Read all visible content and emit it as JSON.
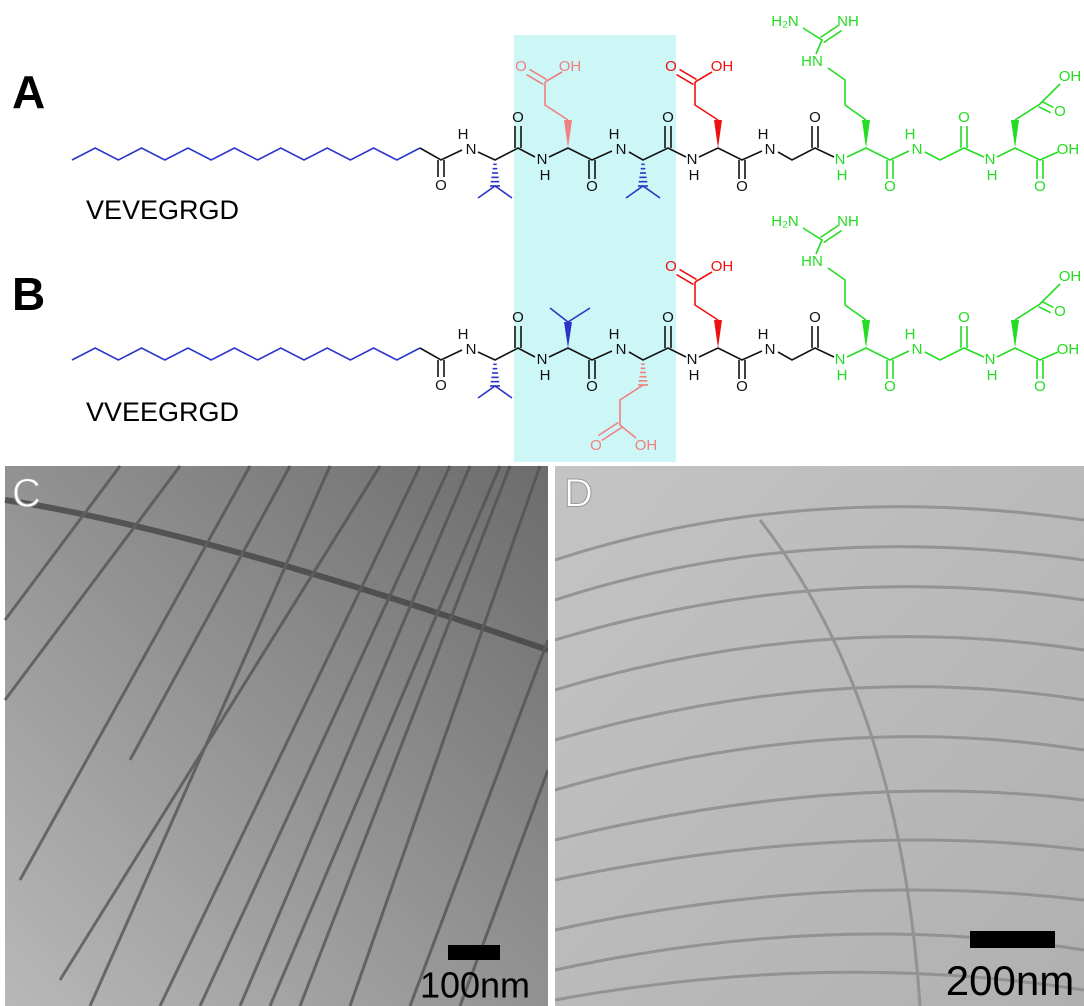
{
  "panels": [
    {
      "label": "A",
      "peptide": "VEVEGRGD",
      "atoms": [
        "O",
        "H",
        "N",
        "O",
        "N",
        "H",
        "O",
        "H",
        "N",
        "O",
        "N",
        "H",
        "O",
        "H",
        "N",
        "O",
        "N",
        "H",
        "O",
        "H",
        "N",
        "O",
        "N",
        "H",
        "O",
        "OH",
        "OH",
        "O",
        "O",
        "OH",
        "O",
        "OH",
        "H₂N",
        "NH",
        "HN"
      ]
    },
    {
      "label": "B",
      "peptide": "VVEEGRGD",
      "atoms": [
        "O",
        "H",
        "N",
        "O",
        "N",
        "H",
        "O",
        "H",
        "N",
        "O",
        "N",
        "H",
        "O",
        "H",
        "N",
        "O",
        "N",
        "H",
        "O",
        "H",
        "N",
        "O",
        "N",
        "H",
        "O",
        "OH",
        "OH",
        "O",
        "O",
        "OH",
        "O",
        "OH",
        "H₂N",
        "NH",
        "HN"
      ]
    },
    {
      "label": "C",
      "scale_bar": "100nm"
    },
    {
      "label": "D",
      "scale_bar": "200nm"
    }
  ]
}
